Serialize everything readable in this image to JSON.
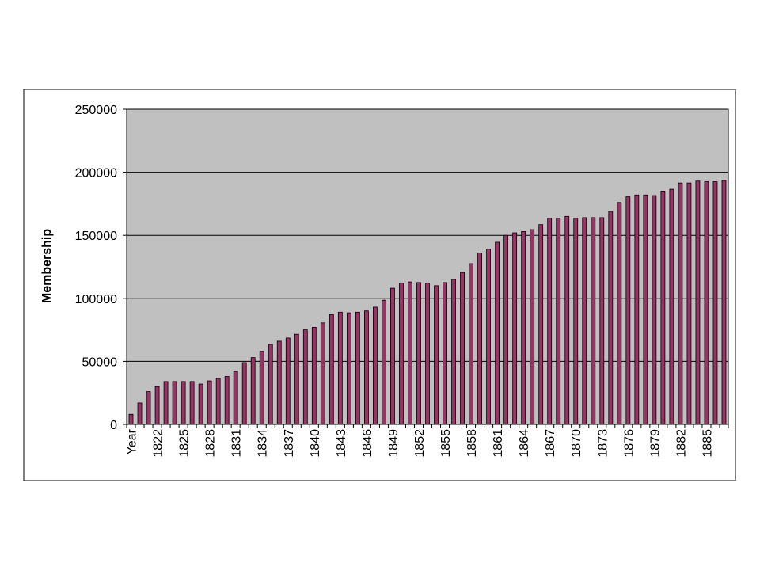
{
  "chart_data": {
    "type": "bar",
    "ylabel": "Membership",
    "categories": [
      "Year",
      null,
      null,
      "1822",
      null,
      null,
      "1825",
      null,
      null,
      "1828",
      null,
      null,
      "1831",
      null,
      null,
      "1834",
      null,
      null,
      "1837",
      null,
      null,
      "1840",
      null,
      null,
      "1843",
      null,
      null,
      "1846",
      null,
      null,
      "1849",
      null,
      null,
      "1852",
      null,
      null,
      "1855",
      null,
      null,
      "1858",
      null,
      null,
      "1861",
      null,
      null,
      "1864",
      null,
      null,
      "1867",
      null,
      null,
      "1870",
      null,
      null,
      "1873",
      null,
      null,
      "1876",
      null,
      null,
      "1879",
      null,
      null,
      "1882",
      null,
      null,
      "1885",
      null,
      null
    ],
    "values": [
      8000,
      17000,
      26000,
      30000,
      34000,
      34000,
      34000,
      34000,
      32000,
      34500,
      36500,
      38000,
      42000,
      49000,
      53000,
      58000,
      63500,
      66000,
      68500,
      71500,
      75000,
      77000,
      80500,
      87000,
      89000,
      88500,
      89000,
      90000,
      93000,
      98500,
      108000,
      112000,
      113000,
      112500,
      112000,
      110000,
      112500,
      115000,
      120500,
      127500,
      136000,
      139000,
      144500,
      150000,
      152000,
      153000,
      154500,
      158500,
      163500,
      163500,
      165000,
      163500,
      164000,
      164000,
      164000,
      169000,
      176000,
      180500,
      182000,
      182000,
      181500,
      185000,
      186500,
      191500,
      191500,
      193000,
      192500,
      192500,
      193500
    ],
    "color": "#993366",
    "ylim": [
      0,
      250000
    ],
    "yticks": [
      0,
      50000,
      100000,
      150000,
      200000,
      250000
    ],
    "grid": true
  }
}
